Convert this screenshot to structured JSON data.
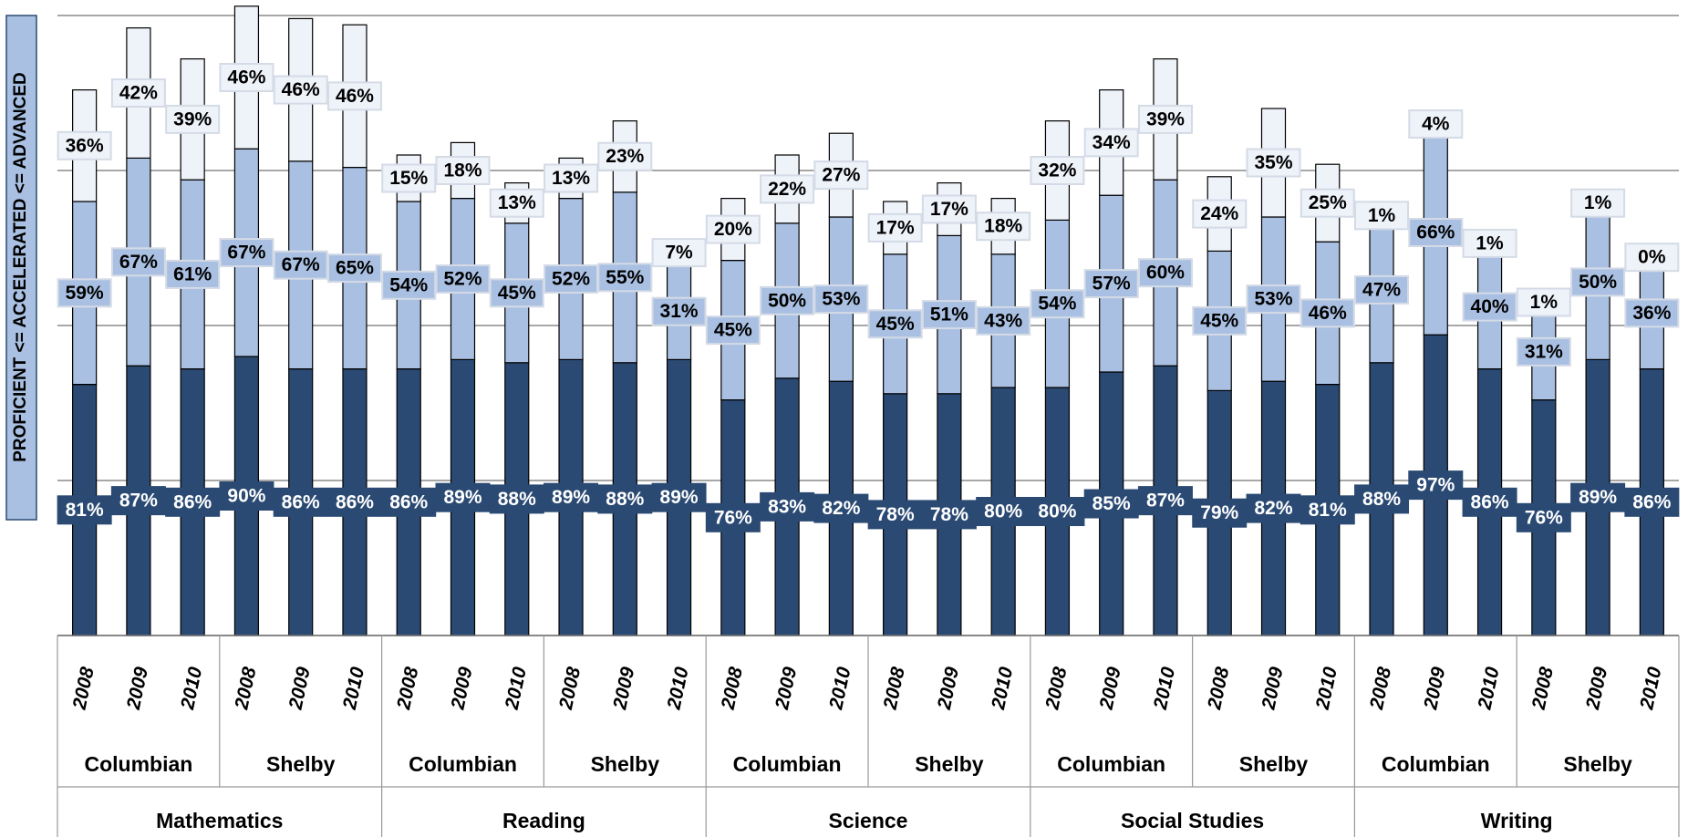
{
  "chart_data": {
    "type": "stacked_bar",
    "y_axis_label": "PROFICIENT <= ACCELERATED <= ADVANCED",
    "categories": [
      "2008",
      "2009",
      "2010",
      "2008",
      "2009",
      "2010",
      "2008",
      "2009",
      "2010",
      "2008",
      "2009",
      "2010",
      "2008",
      "2009",
      "2010",
      "2008",
      "2009",
      "2010",
      "2008",
      "2009",
      "2010",
      "2008",
      "2009",
      "2010",
      "2008",
      "2009",
      "2010",
      "2008",
      "2009",
      "2010"
    ],
    "category_groups": [
      {
        "name": "Mathematics",
        "groups": [
          "Columbian",
          "Shelby"
        ]
      },
      {
        "name": "Reading",
        "groups": [
          "Columbian",
          "Shelby"
        ]
      },
      {
        "name": "Science",
        "groups": [
          "Columbian",
          "Shelby"
        ]
      },
      {
        "name": "Social Studies",
        "groups": [
          "Columbian",
          "Shelby"
        ]
      },
      {
        "name": "Writing",
        "groups": [
          "Columbian",
          "Shelby"
        ]
      }
    ],
    "series": [
      {
        "color": "#2b4a73",
        "label_color": "#ffffff",
        "values": [
          81,
          87,
          86,
          90,
          86,
          86,
          86,
          89,
          88,
          89,
          88,
          89,
          76,
          83,
          82,
          78,
          78,
          80,
          80,
          85,
          87,
          79,
          82,
          81,
          88,
          97,
          86,
          76,
          89,
          86
        ],
        "value_labels": [
          "81%",
          "87%",
          "86%",
          "90%",
          "86%",
          "86%",
          "86%",
          "89%",
          "88%",
          "89%",
          "88%",
          "89%",
          "76%",
          "83%",
          "82%",
          "78%",
          "78%",
          "80%",
          "80%",
          "85%",
          "87%",
          "79%",
          "82%",
          "81%",
          "88%",
          "97%",
          "86%",
          "76%",
          "89%",
          "86%"
        ]
      },
      {
        "color": "#a9c0e2",
        "label_color": "#000000",
        "values": [
          59,
          67,
          61,
          67,
          67,
          65,
          54,
          52,
          45,
          52,
          55,
          31,
          45,
          50,
          53,
          45,
          51,
          43,
          54,
          57,
          60,
          45,
          53,
          46,
          47,
          66,
          40,
          31,
          50,
          36
        ],
        "value_labels": [
          "59%",
          "67%",
          "61%",
          "67%",
          "67%",
          "65%",
          "54%",
          "52%",
          "45%",
          "52%",
          "55%",
          "31%",
          "45%",
          "50%",
          "53%",
          "45%",
          "51%",
          "43%",
          "54%",
          "57%",
          "60%",
          "45%",
          "53%",
          "46%",
          "47%",
          "66%",
          "40%",
          "31%",
          "50%",
          "36%"
        ]
      },
      {
        "color": "#eef2f9",
        "label_color": "#000000",
        "values": [
          36,
          42,
          39,
          46,
          46,
          46,
          15,
          18,
          13,
          13,
          23,
          7,
          20,
          22,
          27,
          17,
          17,
          18,
          32,
          34,
          39,
          24,
          35,
          25,
          1,
          4,
          1,
          1,
          1,
          0
        ],
        "value_labels": [
          "36%",
          "42%",
          "39%",
          "46%",
          "46%",
          "46%",
          "15%",
          "18%",
          "13%",
          "13%",
          "23%",
          "7%",
          "20%",
          "22%",
          "27%",
          "17%",
          "17%",
          "18%",
          "32%",
          "34%",
          "39%",
          "24%",
          "35%",
          "25%",
          "1%",
          "4%",
          "1%",
          "1%",
          "1%",
          "0%"
        ]
      }
    ],
    "ylim": [
      0,
      200
    ],
    "yticks": [
      0,
      50,
      100,
      150,
      200
    ],
    "grid": true
  }
}
